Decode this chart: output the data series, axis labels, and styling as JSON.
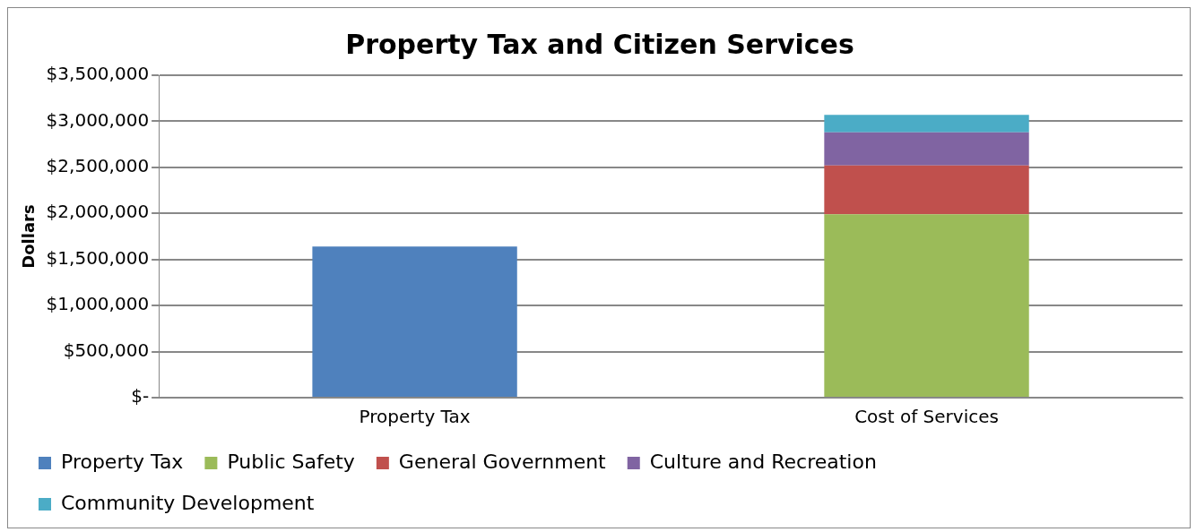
{
  "chart_data": {
    "type": "bar",
    "title": "Property Tax and Citizen Services",
    "ylabel": "Dollars",
    "categories": [
      "Property Tax",
      "Cost of Services"
    ],
    "stacked": true,
    "series": [
      {
        "name": "Property Tax",
        "color": "#4f81bd",
        "values": [
          1640000,
          null
        ]
      },
      {
        "name": "Public Safety",
        "color": "#9bbb59",
        "values": [
          null,
          1990000
        ]
      },
      {
        "name": "General Government",
        "color": "#c0504d",
        "values": [
          null,
          530000
        ]
      },
      {
        "name": "Culture and Recreation",
        "color": "#8064a2",
        "values": [
          null,
          360000
        ]
      },
      {
        "name": "Community Development",
        "color": "#4bacc6",
        "values": [
          null,
          190000
        ]
      }
    ],
    "ylim": [
      0,
      3500000
    ],
    "yticks": [
      {
        "value": 0,
        "label": "$-"
      },
      {
        "value": 500000,
        "label": "$500,000"
      },
      {
        "value": 1000000,
        "label": "$1,000,000"
      },
      {
        "value": 1500000,
        "label": "$1,500,000"
      },
      {
        "value": 2000000,
        "label": "$2,000,000"
      },
      {
        "value": 2500000,
        "label": "$2,500,000"
      },
      {
        "value": 3000000,
        "label": "$3,000,000"
      },
      {
        "value": 3500000,
        "label": "$3,500,000"
      }
    ],
    "grid": "y",
    "legend": "bottom"
  }
}
